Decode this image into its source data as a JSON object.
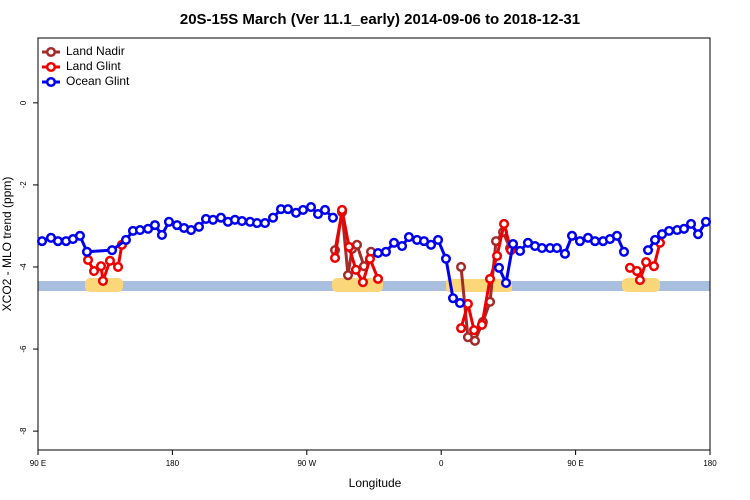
{
  "chart_data": {
    "type": "line",
    "title": "20S-15S March (Ver 11.1_early)   2014-09-06 to 2018-12-31",
    "x_label": "Longitude",
    "y_label": "XCO2 - MLO trend (ppm)",
    "xlim": [
      90,
      540
    ],
    "ylim": [
      -8.46,
      1.58
    ],
    "xticks": [
      {
        "value": 90,
        "label": "90 E"
      },
      {
        "value": 180,
        "label": "180"
      },
      {
        "value": 270,
        "label": "90 W"
      },
      {
        "value": 360,
        "label": "0"
      },
      {
        "value": 450,
        "label": "90 E"
      },
      {
        "value": 540,
        "label": "180"
      }
    ],
    "yticks": [
      0,
      -2,
      -4,
      -6,
      -8
    ],
    "legend": "top-left",
    "series": [
      {
        "name": "Land Nadir",
        "color": "#a52a2a",
        "x": [
          288.9,
          293.6,
          297.6,
          300.3,
          303.6,
          308.3,
          313.0,
          null,
          373.3,
          377.9,
          382.6,
          387.9,
          392.7,
          396.7,
          401.4,
          406.1
        ],
        "values": [
          -3.59,
          -2.66,
          -4.2,
          -3.56,
          -3.46,
          -3.98,
          -3.63,
          null,
          -4.0,
          -5.71,
          -5.8,
          -5.34,
          -4.85,
          -3.37,
          -3.15,
          -3.54
        ]
      },
      {
        "name": "Land Glint",
        "color": "#ee0000",
        "x": [
          123.5,
          127.5,
          132.2,
          133.5,
          138.2,
          143.6,
          146.2,
          null,
          288.9,
          293.6,
          298.3,
          302.9,
          307.6,
          312.3,
          317.7,
          null,
          373.3,
          377.9,
          382.0,
          387.3,
          392.7,
          397.4,
          402.1,
          406.7,
          null,
          486.4,
          491.1,
          493.1,
          497.2,
          502.5,
          506.5
        ],
        "values": [
          -3.83,
          -4.1,
          -3.98,
          -4.34,
          -3.85,
          -4.0,
          -3.46,
          null,
          -3.78,
          -2.61,
          -3.51,
          -4.07,
          -4.37,
          -3.8,
          -4.29,
          null,
          -5.49,
          -4.9,
          -5.54,
          -5.41,
          -4.29,
          -3.73,
          -2.95,
          -3.59,
          null,
          -4.02,
          -4.1,
          -4.32,
          -3.88,
          -3.98,
          -3.41
        ]
      },
      {
        "name": "Ocean Glint",
        "color": "#0000ee",
        "x": [
          92.7,
          98.7,
          103.4,
          108.8,
          113.4,
          118.1,
          122.8,
          139.6,
          148.9,
          153.6,
          158.3,
          163.7,
          168.3,
          173.0,
          177.7,
          183.1,
          187.8,
          192.5,
          197.8,
          202.5,
          207.2,
          212.5,
          217.2,
          221.9,
          226.6,
          232.0,
          236.7,
          242.0,
          247.4,
          252.7,
          257.4,
          262.8,
          267.5,
          272.8,
          277.5,
          282.2,
          287.5,
          null,
          317.7,
          323.0,
          328.4,
          333.8,
          338.4,
          343.8,
          348.5,
          353.2,
          357.9,
          363.2,
          367.9,
          372.6,
          null,
          398.7,
          403.4,
          408.1,
          412.8,
          418.1,
          422.8,
          427.5,
          432.9,
          437.5,
          442.9,
          447.6,
          452.9,
          458.3,
          463.0,
          468.4,
          473.0,
          477.7,
          482.4,
          null,
          498.5,
          503.2,
          507.9,
          512.6,
          518.0,
          522.6,
          527.3,
          532.0,
          537.3
        ],
        "values": [
          -3.37,
          -3.29,
          -3.37,
          -3.37,
          -3.32,
          -3.24,
          -3.63,
          -3.59,
          -3.34,
          -3.12,
          -3.1,
          -3.07,
          -2.98,
          -3.22,
          -2.9,
          -2.98,
          -3.05,
          -3.1,
          -3.02,
          -2.83,
          -2.85,
          -2.8,
          -2.9,
          -2.85,
          -2.88,
          -2.9,
          -2.93,
          -2.93,
          -2.8,
          -2.59,
          -2.59,
          -2.68,
          -2.61,
          -2.54,
          -2.71,
          -2.61,
          -2.8,
          null,
          -3.66,
          -3.63,
          -3.41,
          -3.49,
          -3.27,
          -3.34,
          -3.37,
          -3.46,
          -3.34,
          -3.8,
          -4.76,
          -4.88,
          null,
          -4.02,
          -4.39,
          -3.44,
          -3.61,
          -3.41,
          -3.49,
          -3.54,
          -3.54,
          -3.54,
          -3.68,
          -3.24,
          -3.37,
          -3.29,
          -3.37,
          -3.37,
          -3.32,
          -3.24,
          -3.63,
          null,
          -3.59,
          -3.34,
          -3.2,
          -3.12,
          -3.1,
          -3.07,
          -2.95,
          -3.2,
          -2.9
        ]
      }
    ]
  }
}
